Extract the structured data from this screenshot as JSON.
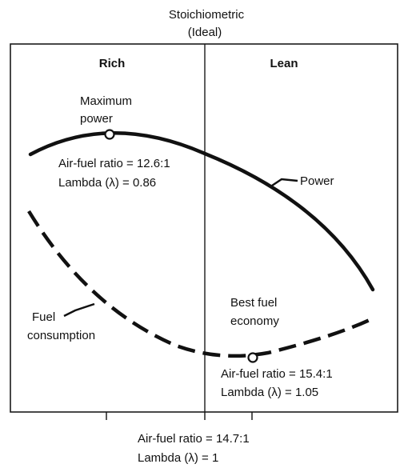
{
  "chart_data": {
    "type": "line",
    "top_annotation": [
      "Stoichiometric",
      "(Ideal)"
    ],
    "regions": {
      "left": "Rich",
      "right": "Lean"
    },
    "series": [
      {
        "name": "Power",
        "style": "solid"
      },
      {
        "name": "Fuel consumption",
        "style": "dashed"
      }
    ],
    "series_labels": {
      "power": "Power",
      "fuel": [
        "Fuel",
        "consumption"
      ]
    },
    "points": {
      "max_power": {
        "title": [
          "Maximum",
          "power"
        ],
        "ratio_text": "Air-fuel ratio = 12.6:1",
        "lambda_text": "Lambda (λ) = 0.86",
        "afr": 12.6,
        "lambda": 0.86
      },
      "best_economy": {
        "title": [
          "Best fuel",
          "economy"
        ],
        "ratio_text": "Air-fuel ratio = 15.4:1",
        "lambda_text": "Lambda (λ) = 1.05",
        "afr": 15.4,
        "lambda": 1.05
      },
      "stoichiometric": {
        "ratio_text": "Air-fuel ratio = 14.7:1",
        "lambda_text": "Lambda (λ) = 1",
        "afr": 14.7,
        "lambda": 1
      }
    },
    "colors": {
      "line": "#111111",
      "frame": "#1a1a1a",
      "background": "#ffffff"
    }
  }
}
